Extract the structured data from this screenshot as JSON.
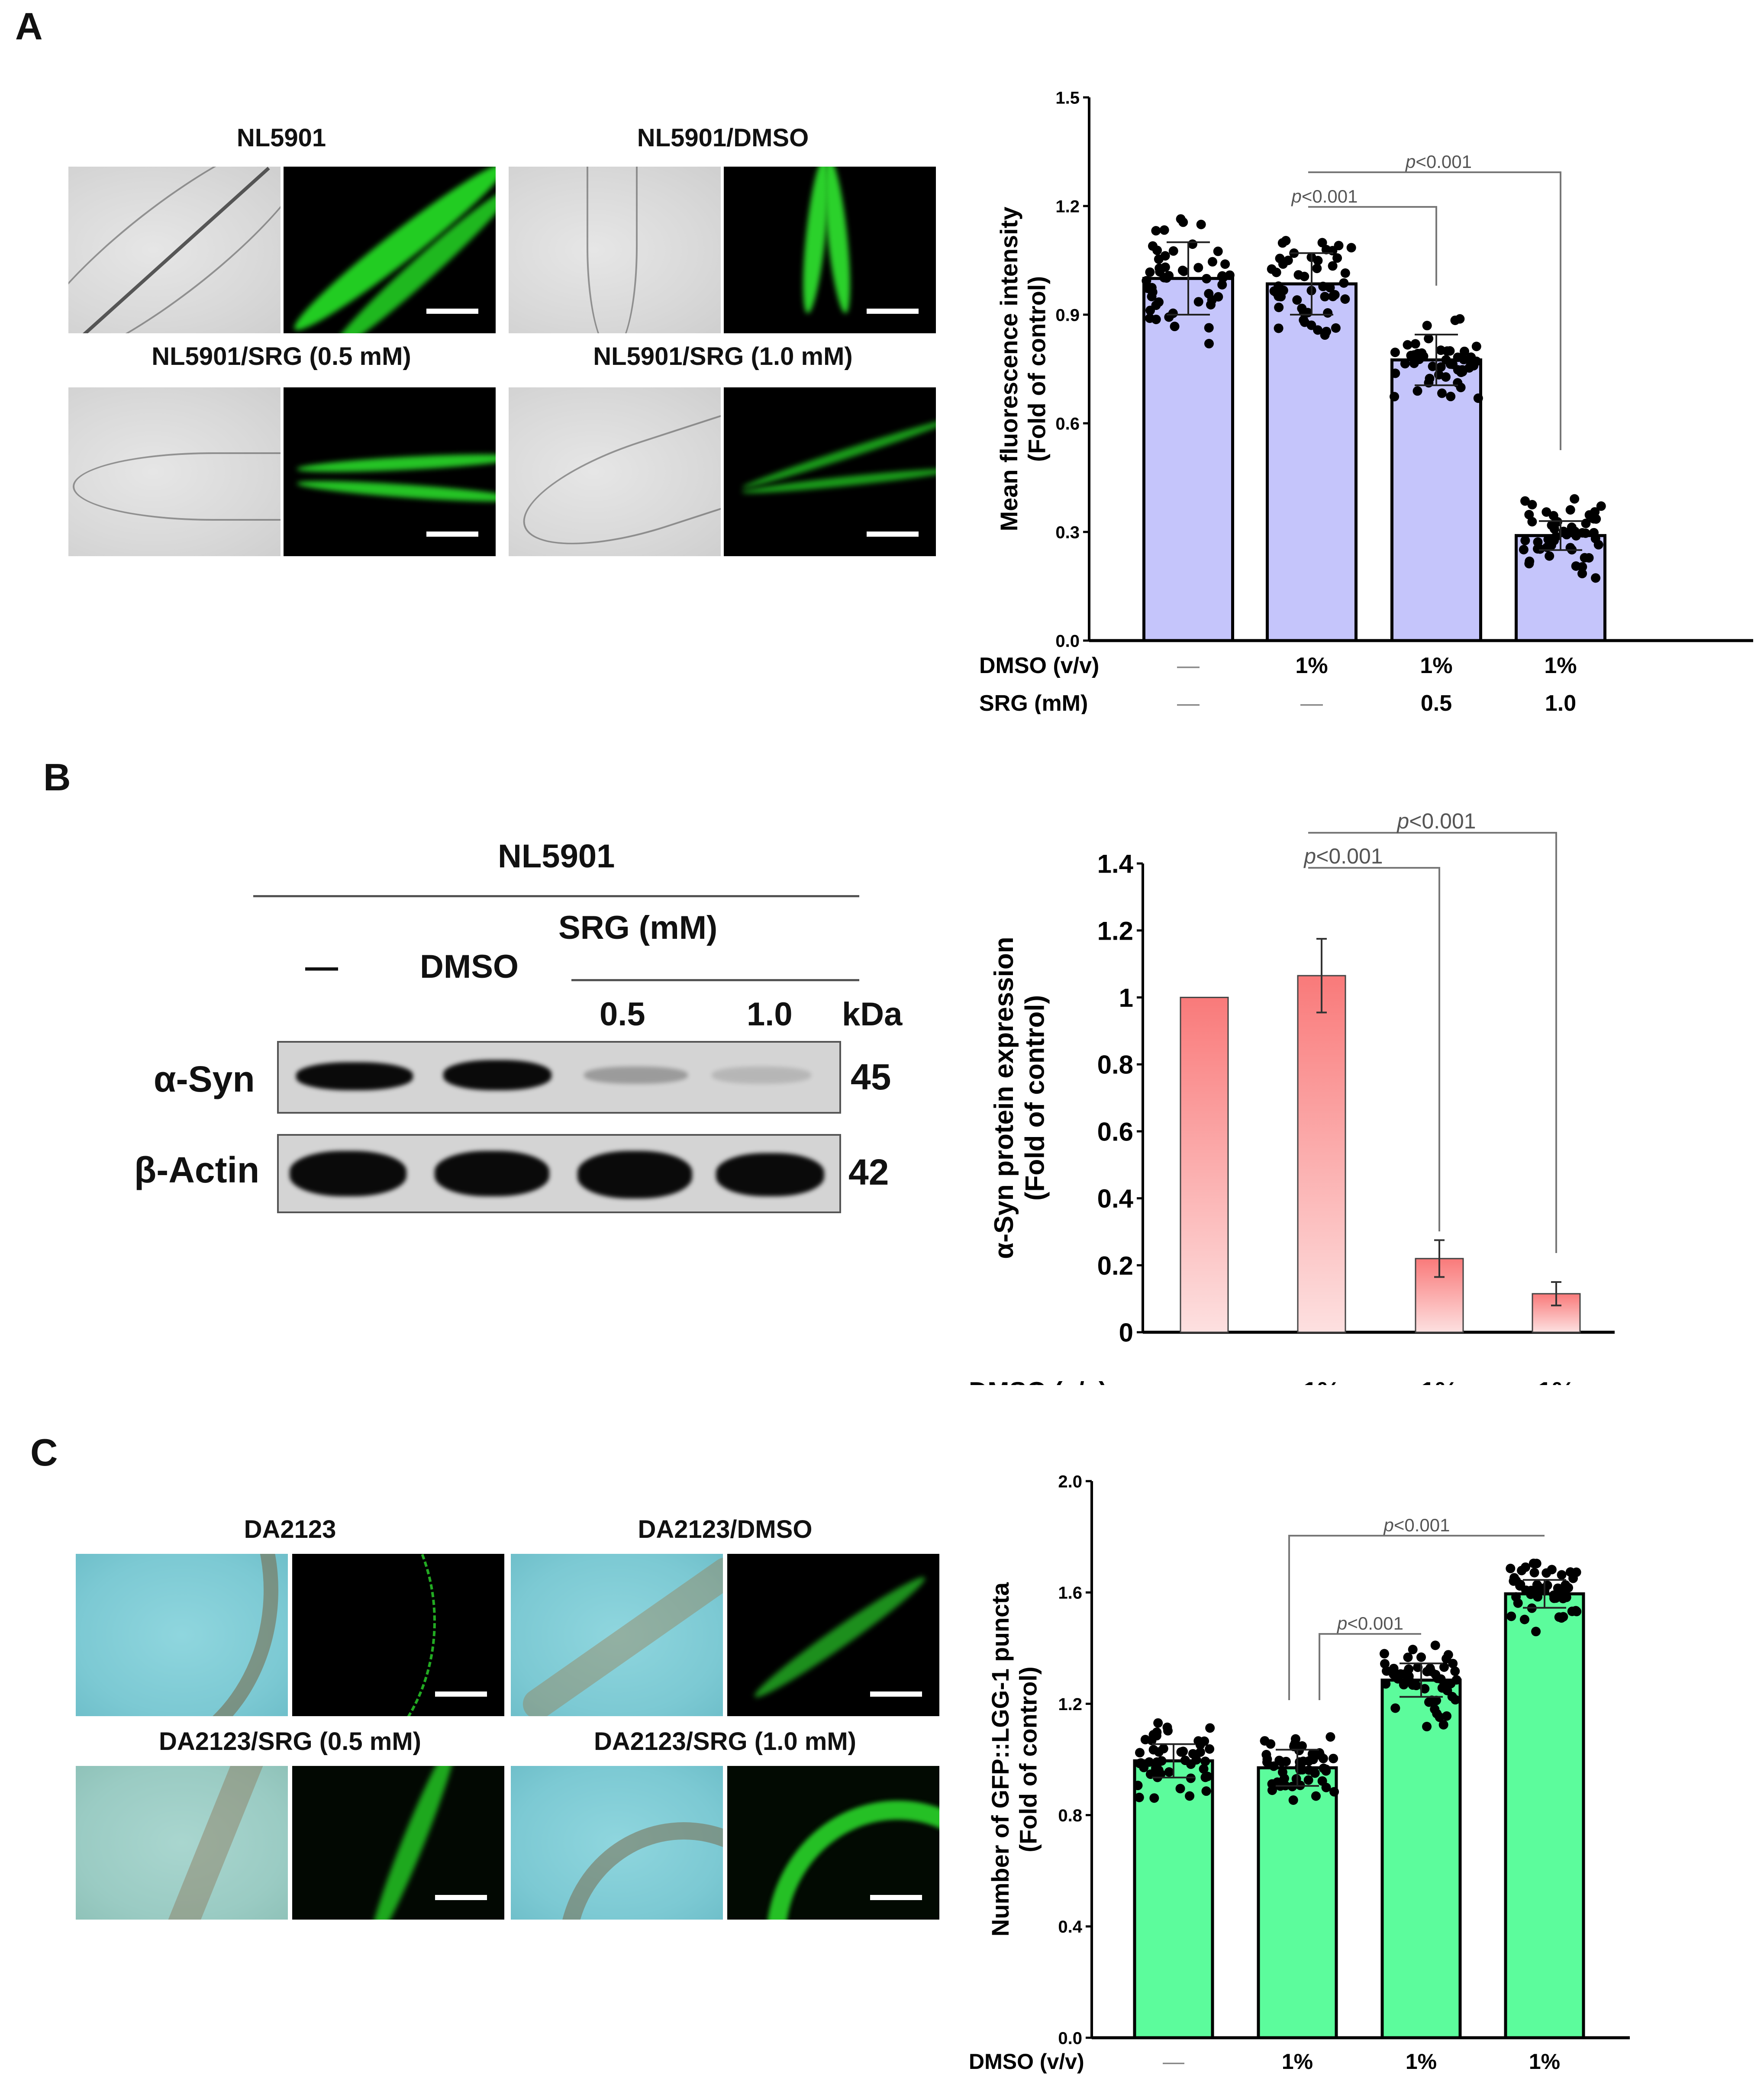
{
  "panels": {
    "A": {
      "label": "A",
      "images": [
        {
          "title": "NL5901",
          "bf_style": "gray"
        },
        {
          "title": "NL5901/DMSO",
          "bf_style": "gray"
        },
        {
          "title": "NL5901/SRG (0.5 mM)",
          "bf_style": "gray"
        },
        {
          "title": "NL5901/SRG (1.0 mM)",
          "bf_style": "gray"
        }
      ]
    },
    "B": {
      "label": "B",
      "blot": {
        "strain": "NL5901",
        "lane_headers": [
          "—",
          "DMSO",
          "0.5",
          "1.0"
        ],
        "srg_header": "SRG (mM)",
        "kda_label": "kDa",
        "rows": [
          {
            "protein": "α-Syn",
            "kda": "45",
            "intensity": [
              1.0,
              1.0,
              0.25,
              0.15
            ]
          },
          {
            "protein": "β-Actin",
            "kda": "42",
            "intensity": [
              1.0,
              1.0,
              1.0,
              1.0
            ]
          }
        ]
      }
    },
    "C": {
      "label": "C",
      "images": [
        {
          "title": "DA2123",
          "bf_style": "cyan"
        },
        {
          "title": "DA2123/DMSO",
          "bf_style": "cyan"
        },
        {
          "title": "DA2123/SRG (0.5 mM)",
          "bf_style": "cyan2"
        },
        {
          "title": "DA2123/SRG (1.0 mM)",
          "bf_style": "cyan"
        }
      ]
    }
  },
  "conditions": {
    "row_labels": [
      "DMSO (v/v)",
      "SRG (mM)"
    ],
    "dmso": [
      "—",
      "1%",
      "1%",
      "1%"
    ],
    "srg": [
      "—",
      "—",
      "0.5",
      "1.0"
    ]
  },
  "colors": {
    "chart_A_bar": "#c5c5fb",
    "chart_B_bar_top": "#f97a7a",
    "chart_B_bar_bottom": "#fde0e0",
    "chart_C_bar": "#5cfc9c",
    "gfp_green": "#33dd33",
    "sig_line": "#777777"
  },
  "chart_data": [
    {
      "id": "A",
      "type": "bar",
      "title": "",
      "categories": [
        "Control",
        "DMSO 1%",
        "DMSO 1% + SRG 0.5 mM",
        "DMSO 1% + SRG 1.0 mM"
      ],
      "values": [
        1.0,
        0.985,
        0.775,
        0.29
      ],
      "error_sd": [
        0.1,
        0.085,
        0.07,
        0.04
      ],
      "points_range": [
        [
          0.82,
          1.2
        ],
        [
          0.81,
          1.15
        ],
        [
          0.65,
          0.93
        ],
        [
          0.17,
          0.42
        ]
      ],
      "ylabel": "Mean fluorescence intensity (Fold of control)",
      "xlabel": "",
      "ylim": [
        0,
        1.5
      ],
      "yticks": [
        "0.0",
        "0.3",
        "0.6",
        "0.9",
        "1.2",
        "1.5"
      ],
      "annotations": [
        {
          "from": 1,
          "to": 2,
          "text": "p<0.001"
        },
        {
          "from": 1,
          "to": 3,
          "text": "p<0.001"
        }
      ],
      "scatter_points": true,
      "grid": false
    },
    {
      "id": "B",
      "type": "bar",
      "title": "",
      "categories": [
        "Control",
        "DMSO 1%",
        "DMSO 1% + SRG 0.5 mM",
        "DMSO 1% + SRG 1.0 mM"
      ],
      "values": [
        1.0,
        1.065,
        0.22,
        0.115
      ],
      "error": [
        0,
        0.11,
        0.055,
        0.035
      ],
      "ylabel": "α-Syn protein expression (Fold of control)",
      "xlabel": "",
      "ylim": [
        0,
        1.4
      ],
      "yticks": [
        "0",
        "0.2",
        "0.4",
        "0.6",
        "0.8",
        "1",
        "1.2",
        "1.4"
      ],
      "annotations": [
        {
          "from": 1,
          "to": 2,
          "text": "p<0.001"
        },
        {
          "from": 1,
          "to": 3,
          "text": "p<0.001"
        }
      ],
      "grid": false
    },
    {
      "id": "C",
      "type": "bar",
      "title": "",
      "categories": [
        "Control",
        "DMSO 1%",
        "DMSO 1% + SRG 0.5 mM",
        "DMSO 1% + SRG 1.0 mM"
      ],
      "values": [
        0.995,
        0.97,
        1.285,
        1.595
      ],
      "error_sd": [
        0.06,
        0.065,
        0.06,
        0.05
      ],
      "points_range": [
        [
          0.81,
          1.18
        ],
        [
          0.82,
          1.14
        ],
        [
          1.04,
          1.41
        ],
        [
          1.44,
          1.73
        ]
      ],
      "ylabel": "Number of GFP::LGG-1 puncta (Fold of control)",
      "xlabel": "",
      "ylim": [
        0,
        2.0
      ],
      "yticks": [
        "0.0",
        "0.4",
        "0.8",
        "1.2",
        "1.6",
        "2.0"
      ],
      "annotations": [
        {
          "from": 1,
          "to": 2,
          "text": "p<0.001"
        },
        {
          "from": 1,
          "to": 3,
          "text": "p<0.001"
        }
      ],
      "scatter_points": true,
      "grid": false
    }
  ]
}
